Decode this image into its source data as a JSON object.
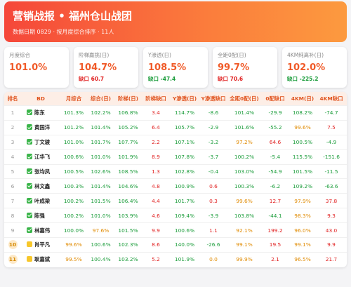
{
  "header": {
    "title": "营销战报 • 福州仓山战团",
    "subtitle": "数据日期 0829 · 按月度综合排序 · 11人"
  },
  "cards": [
    {
      "label": "月度综合",
      "value": "101.0%"
    },
    {
      "label": "阶梯赢挑(日)",
      "value": "104.7%",
      "gap": "缺口 60.7"
    },
    {
      "label": "Y渗透(日)",
      "value": "108.5%",
      "gap": "缺口 -47.4"
    },
    {
      "label": "全距0配(日)",
      "value": "99.7%",
      "gap": "缺口 70.6"
    },
    {
      "label": "4KM纯离补(日)",
      "value": "102.0%",
      "gap": "缺口 -225.2"
    }
  ],
  "table": {
    "columns": [
      "排名",
      "BD",
      "月综合",
      "综合(日)",
      "阶梯(日)",
      "阶梯缺口",
      "Y渗透(日)",
      "Y渗透缺口",
      "全距0配(日)",
      "0配缺口",
      "4KM(日)",
      "4KM缺口"
    ],
    "rows": [
      [
        "1",
        "陈东",
        "101.3%",
        "102.2%",
        "106.8%",
        "3.4",
        "114.7%",
        "-8.6",
        "101.4%",
        "-29.9",
        "108.2%",
        "-74.7"
      ],
      [
        "2",
        "黄国洋",
        "101.2%",
        "101.4%",
        "105.2%",
        "6.4",
        "105.7%",
        "-2.9",
        "101.6%",
        "-55.2",
        "99.6%",
        "7.5"
      ],
      [
        "3",
        "丁文骏",
        "101.0%",
        "101.7%",
        "107.7%",
        "2.2",
        "107.1%",
        "-3.2",
        "97.2%",
        "64.6",
        "100.5%",
        "-4.9"
      ],
      [
        "4",
        "江华飞",
        "100.6%",
        "101.0%",
        "101.9%",
        "8.9",
        "107.8%",
        "-3.7",
        "100.2%",
        "-5.4",
        "115.5%",
        "-151.6"
      ],
      [
        "5",
        "张均凤",
        "100.5%",
        "102.6%",
        "108.5%",
        "1.3",
        "102.8%",
        "-0.4",
        "103.0%",
        "-54.9",
        "101.5%",
        "-11.5"
      ],
      [
        "6",
        "林文鑫",
        "100.3%",
        "101.4%",
        "104.6%",
        "4.8",
        "100.9%",
        "0.6",
        "100.3%",
        "-6.2",
        "109.2%",
        "-63.6"
      ],
      [
        "7",
        "叶成梁",
        "100.2%",
        "101.5%",
        "106.4%",
        "4.4",
        "101.7%",
        "0.3",
        "99.6%",
        "12.7",
        "97.9%",
        "37.8"
      ],
      [
        "8",
        "陈强",
        "100.2%",
        "101.0%",
        "103.9%",
        "4.6",
        "109.4%",
        "-3.9",
        "103.8%",
        "-44.1",
        "98.3%",
        "9.3"
      ],
      [
        "9",
        "林嘉伟",
        "100.0%",
        "97.6%",
        "101.5%",
        "9.9",
        "100.6%",
        "1.1",
        "92.1%",
        "199.2",
        "96.0%",
        "43.0"
      ],
      [
        "10",
        "肖平凡",
        "99.6%",
        "100.6%",
        "102.3%",
        "8.6",
        "140.0%",
        "-26.6",
        "99.1%",
        "19.5",
        "99.1%",
        "9.9"
      ],
      [
        "11",
        "耿嘉斌",
        "99.5%",
        "100.4%",
        "103.2%",
        "5.2",
        "101.9%",
        "0.0",
        "99.9%",
        "2.1",
        "96.5%",
        "21.7"
      ]
    ]
  }
}
